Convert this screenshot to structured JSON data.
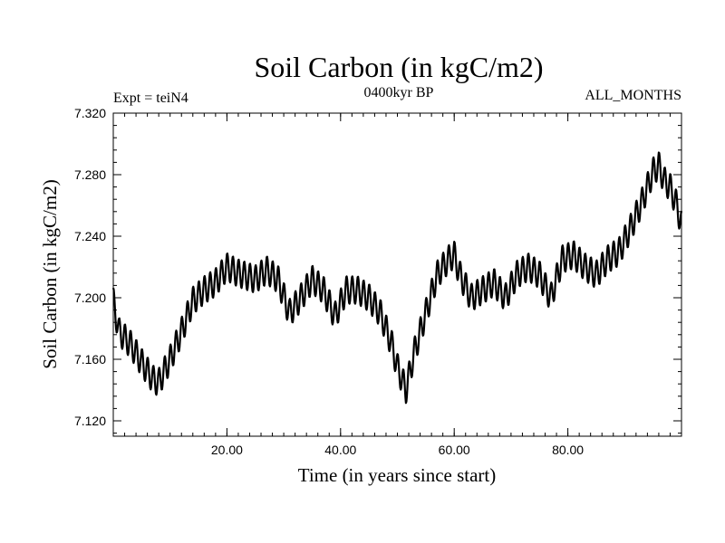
{
  "chart_data": {
    "type": "line",
    "title": "Soil Carbon (in kgC/m2)",
    "subtitle_left": "Expt = teiN4",
    "subtitle_center": "0400kyr BP",
    "subtitle_right": "ALL_MONTHS",
    "xlabel": "Time (in years since start)",
    "ylabel": "Soil Carbon (in kgC/m2)",
    "xlim": [
      0,
      100
    ],
    "ylim": [
      7.11,
      7.32
    ],
    "x_ticks": [
      20,
      40,
      60,
      80
    ],
    "x_tick_labels": [
      "20.00",
      "40.00",
      "60.00",
      "80.00"
    ],
    "y_ticks": [
      7.12,
      7.16,
      7.2,
      7.24,
      7.28,
      7.32
    ],
    "y_tick_labels": [
      "7.120",
      "7.160",
      "7.200",
      "7.240",
      "7.280",
      "7.320"
    ],
    "seasonal_amplitude": 0.009,
    "series": [
      {
        "name": "Soil Carbon",
        "trend_x": [
          0,
          1,
          3,
          5,
          7,
          8,
          10,
          12,
          14,
          16,
          18,
          20,
          22,
          25,
          27,
          29,
          31,
          33,
          35,
          37,
          39,
          41,
          43,
          45,
          47,
          49,
          50,
          51.5,
          53,
          55,
          57,
          59,
          60,
          61,
          63,
          65,
          67,
          69,
          71,
          73,
          75,
          77,
          79,
          81,
          83,
          85,
          87,
          89,
          91,
          93,
          95,
          96,
          97,
          98,
          99,
          100
        ],
        "trend_y": [
          7.198,
          7.178,
          7.17,
          7.158,
          7.147,
          7.145,
          7.16,
          7.178,
          7.198,
          7.205,
          7.21,
          7.22,
          7.216,
          7.212,
          7.218,
          7.212,
          7.19,
          7.2,
          7.212,
          7.205,
          7.188,
          7.205,
          7.205,
          7.2,
          7.19,
          7.17,
          7.155,
          7.14,
          7.165,
          7.19,
          7.215,
          7.225,
          7.228,
          7.215,
          7.2,
          7.205,
          7.21,
          7.2,
          7.215,
          7.22,
          7.215,
          7.2,
          7.225,
          7.228,
          7.22,
          7.215,
          7.225,
          7.23,
          7.245,
          7.262,
          7.282,
          7.286,
          7.276,
          7.272,
          7.262,
          7.248
        ]
      }
    ]
  }
}
